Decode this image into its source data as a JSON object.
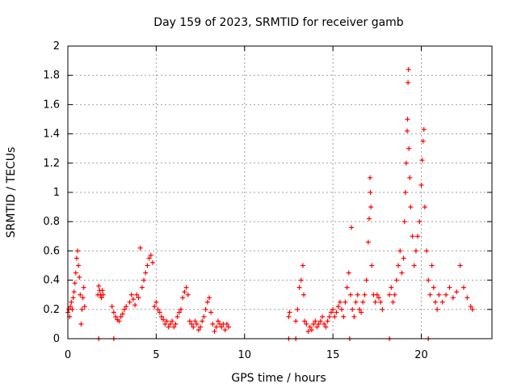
{
  "chart_data": {
    "type": "scatter",
    "title": "Day 159 of 2023, SRMTID for receiver gamb",
    "xlabel": "GPS time / hours",
    "ylabel": "SRMTID / TECUs",
    "xlim": [
      0,
      24
    ],
    "ylim": [
      0,
      2
    ],
    "xticks": [
      0,
      5,
      10,
      15,
      20
    ],
    "xtick_labels": [
      "0",
      "5",
      "10",
      "15",
      "20"
    ],
    "yticks": [
      0,
      0.2,
      0.4,
      0.6,
      0.8,
      1,
      1.2,
      1.4,
      1.6,
      1.8,
      2
    ],
    "ytick_labels": [
      "0",
      "0.2",
      "0.4",
      "0.6",
      "0.8",
      "1",
      "1.2",
      "1.4",
      "1.6",
      "1.8",
      "2"
    ],
    "grid": true,
    "marker": "+",
    "color": "#ff0000",
    "series": [
      {
        "name": "SRMTID",
        "points": [
          [
            0.0,
            0.18
          ],
          [
            0.05,
            0.2
          ],
          [
            0.1,
            0.15
          ],
          [
            0.15,
            0.22
          ],
          [
            0.2,
            0.25
          ],
          [
            0.25,
            0.2
          ],
          [
            0.3,
            0.28
          ],
          [
            0.35,
            0.32
          ],
          [
            0.4,
            0.38
          ],
          [
            0.45,
            0.45
          ],
          [
            0.5,
            0.55
          ],
          [
            0.55,
            0.6
          ],
          [
            0.6,
            0.5
          ],
          [
            0.65,
            0.42
          ],
          [
            0.7,
            0.3
          ],
          [
            0.75,
            0.1
          ],
          [
            0.8,
            0.2
          ],
          [
            0.85,
            0.28
          ],
          [
            0.9,
            0.35
          ],
          [
            0.95,
            0.22
          ],
          [
            1.75,
            0.0
          ],
          [
            2.6,
            0.0
          ],
          [
            1.7,
            0.3
          ],
          [
            1.75,
            0.36
          ],
          [
            1.8,
            0.33
          ],
          [
            1.85,
            0.3
          ],
          [
            1.9,
            0.28
          ],
          [
            1.95,
            0.33
          ],
          [
            2.0,
            0.3
          ],
          [
            2.5,
            0.22
          ],
          [
            2.6,
            0.18
          ],
          [
            2.7,
            0.15
          ],
          [
            2.8,
            0.13
          ],
          [
            2.9,
            0.12
          ],
          [
            3.0,
            0.15
          ],
          [
            3.1,
            0.17
          ],
          [
            3.2,
            0.2
          ],
          [
            3.3,
            0.22
          ],
          [
            3.5,
            0.25
          ],
          [
            3.6,
            0.3
          ],
          [
            3.7,
            0.27
          ],
          [
            3.8,
            0.23
          ],
          [
            3.9,
            0.3
          ],
          [
            4.0,
            0.28
          ],
          [
            4.1,
            0.62
          ],
          [
            4.2,
            0.35
          ],
          [
            4.3,
            0.4
          ],
          [
            4.4,
            0.45
          ],
          [
            4.5,
            0.5
          ],
          [
            4.6,
            0.55
          ],
          [
            4.7,
            0.57
          ],
          [
            4.8,
            0.52
          ],
          [
            4.9,
            0.22
          ],
          [
            5.0,
            0.25
          ],
          [
            5.1,
            0.2
          ],
          [
            5.2,
            0.18
          ],
          [
            5.3,
            0.15
          ],
          [
            5.4,
            0.13
          ],
          [
            5.5,
            0.1
          ],
          [
            5.6,
            0.12
          ],
          [
            5.7,
            0.08
          ],
          [
            5.8,
            0.1
          ],
          [
            5.9,
            0.12
          ],
          [
            6.0,
            0.08
          ],
          [
            6.1,
            0.1
          ],
          [
            6.2,
            0.15
          ],
          [
            6.3,
            0.18
          ],
          [
            6.4,
            0.2
          ],
          [
            6.5,
            0.28
          ],
          [
            6.6,
            0.32
          ],
          [
            6.7,
            0.35
          ],
          [
            6.8,
            0.3
          ],
          [
            6.9,
            0.12
          ],
          [
            7.0,
            0.1
          ],
          [
            7.1,
            0.08
          ],
          [
            7.2,
            0.12
          ],
          [
            7.3,
            0.1
          ],
          [
            7.4,
            0.06
          ],
          [
            7.5,
            0.08
          ],
          [
            7.6,
            0.12
          ],
          [
            7.7,
            0.15
          ],
          [
            7.8,
            0.2
          ],
          [
            7.9,
            0.25
          ],
          [
            8.0,
            0.28
          ],
          [
            8.1,
            0.18
          ],
          [
            8.2,
            0.1
          ],
          [
            8.3,
            0.05
          ],
          [
            8.4,
            0.08
          ],
          [
            8.5,
            0.12
          ],
          [
            8.6,
            0.1
          ],
          [
            8.7,
            0.08
          ],
          [
            8.8,
            0.1
          ],
          [
            8.9,
            0.06
          ],
          [
            9.0,
            0.1
          ],
          [
            9.1,
            0.08
          ],
          [
            12.5,
            0.0
          ],
          [
            12.9,
            0.0
          ],
          [
            15.95,
            0.0
          ],
          [
            18.2,
            0.0
          ],
          [
            20.4,
            0.0
          ],
          [
            12.5,
            0.15
          ],
          [
            12.55,
            0.18
          ],
          [
            12.9,
            0.12
          ],
          [
            13.0,
            0.2
          ],
          [
            13.1,
            0.35
          ],
          [
            13.2,
            0.4
          ],
          [
            13.3,
            0.5
          ],
          [
            13.35,
            0.3
          ],
          [
            13.4,
            0.12
          ],
          [
            13.5,
            0.1
          ],
          [
            13.6,
            0.05
          ],
          [
            13.7,
            0.08
          ],
          [
            13.8,
            0.06
          ],
          [
            13.9,
            0.1
          ],
          [
            14.0,
            0.12
          ],
          [
            14.1,
            0.08
          ],
          [
            14.2,
            0.1
          ],
          [
            14.3,
            0.12
          ],
          [
            14.4,
            0.15
          ],
          [
            14.5,
            0.1
          ],
          [
            14.6,
            0.08
          ],
          [
            14.7,
            0.12
          ],
          [
            14.8,
            0.15
          ],
          [
            14.9,
            0.18
          ],
          [
            15.0,
            0.2
          ],
          [
            15.1,
            0.15
          ],
          [
            15.2,
            0.18
          ],
          [
            15.3,
            0.22
          ],
          [
            15.4,
            0.25
          ],
          [
            15.5,
            0.2
          ],
          [
            15.6,
            0.15
          ],
          [
            15.7,
            0.25
          ],
          [
            15.8,
            0.35
          ],
          [
            15.9,
            0.45
          ],
          [
            16.0,
            0.3
          ],
          [
            16.05,
            0.76
          ],
          [
            16.1,
            0.2
          ],
          [
            16.2,
            0.15
          ],
          [
            16.3,
            0.25
          ],
          [
            16.4,
            0.3
          ],
          [
            16.5,
            0.2
          ],
          [
            16.6,
            0.18
          ],
          [
            16.7,
            0.25
          ],
          [
            16.8,
            0.3
          ],
          [
            16.9,
            0.4
          ],
          [
            17.0,
            0.66
          ],
          [
            17.05,
            0.82
          ],
          [
            17.1,
            1.1
          ],
          [
            17.12,
            1.0
          ],
          [
            17.15,
            0.9
          ],
          [
            17.2,
            0.5
          ],
          [
            17.3,
            0.3
          ],
          [
            17.4,
            0.25
          ],
          [
            17.5,
            0.3
          ],
          [
            17.6,
            0.28
          ],
          [
            17.7,
            0.25
          ],
          [
            17.8,
            0.2
          ],
          [
            18.2,
            0.3
          ],
          [
            18.3,
            0.35
          ],
          [
            18.4,
            0.25
          ],
          [
            18.5,
            0.3
          ],
          [
            18.6,
            0.4
          ],
          [
            18.7,
            0.5
          ],
          [
            18.8,
            0.6
          ],
          [
            18.9,
            0.45
          ],
          [
            19.0,
            0.55
          ],
          [
            19.05,
            0.8
          ],
          [
            19.1,
            1.0
          ],
          [
            19.15,
            1.2
          ],
          [
            19.2,
            1.42
          ],
          [
            19.22,
            1.5
          ],
          [
            19.25,
            1.75
          ],
          [
            19.28,
            1.84
          ],
          [
            19.3,
            1.3
          ],
          [
            19.35,
            1.1
          ],
          [
            19.4,
            0.9
          ],
          [
            19.5,
            0.7
          ],
          [
            19.6,
            0.5
          ],
          [
            19.7,
            0.6
          ],
          [
            19.8,
            0.7
          ],
          [
            19.9,
            0.8
          ],
          [
            20.0,
            1.05
          ],
          [
            20.05,
            1.22
          ],
          [
            20.1,
            1.35
          ],
          [
            20.15,
            1.43
          ],
          [
            20.2,
            0.9
          ],
          [
            20.3,
            0.6
          ],
          [
            20.4,
            0.4
          ],
          [
            20.5,
            0.3
          ],
          [
            20.6,
            0.5
          ],
          [
            20.7,
            0.35
          ],
          [
            20.8,
            0.25
          ],
          [
            20.9,
            0.2
          ],
          [
            21.0,
            0.3
          ],
          [
            21.2,
            0.25
          ],
          [
            21.4,
            0.3
          ],
          [
            21.6,
            0.35
          ],
          [
            21.8,
            0.28
          ],
          [
            22.0,
            0.32
          ],
          [
            22.2,
            0.5
          ],
          [
            22.4,
            0.35
          ],
          [
            22.6,
            0.28
          ],
          [
            22.8,
            0.22
          ],
          [
            22.9,
            0.2
          ]
        ]
      }
    ]
  }
}
